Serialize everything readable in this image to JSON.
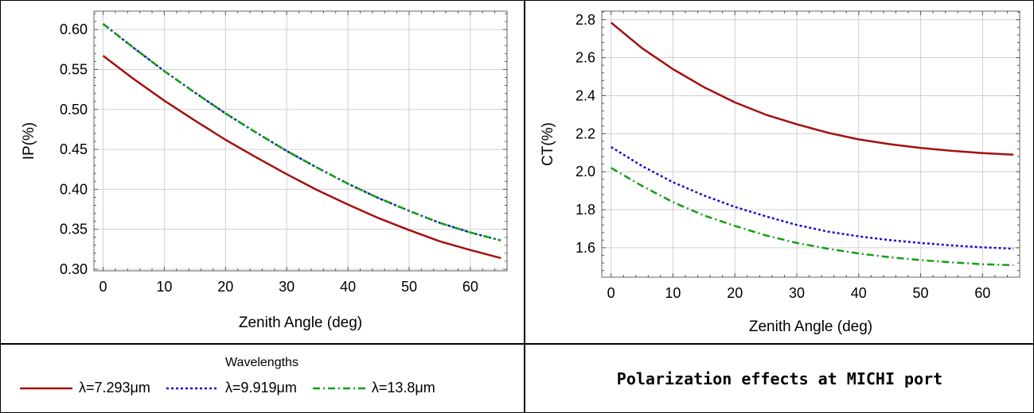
{
  "chart_data": [
    {
      "type": "line",
      "title": "",
      "xlabel": "Zenith Angle (deg)",
      "ylabel": "IP(%)",
      "xlim": [
        -1.5,
        66
      ],
      "ylim": [
        0.298,
        0.623
      ],
      "xticks": [
        0,
        10,
        20,
        30,
        40,
        50,
        60
      ],
      "yticks": [
        0.3,
        0.35,
        0.4,
        0.45,
        0.5,
        0.55,
        0.6
      ],
      "ytick_labels": [
        "0.30",
        "0.35",
        "0.40",
        "0.45",
        "0.50",
        "0.55",
        "0.60"
      ],
      "grid": true,
      "x": [
        0,
        5,
        10,
        15,
        20,
        25,
        30,
        35,
        40,
        45,
        50,
        55,
        60,
        65
      ],
      "series": [
        {
          "name": "λ=7.293μm",
          "color": "#a50f0f",
          "dash": "solid",
          "values": [
            0.567,
            0.538,
            0.511,
            0.486,
            0.462,
            0.44,
            0.419,
            0.399,
            0.381,
            0.364,
            0.349,
            0.335,
            0.324,
            0.314
          ]
        },
        {
          "name": "λ=9.919μm",
          "color": "#1010d0",
          "dash": "dotted",
          "values": [
            0.607,
            0.577,
            0.548,
            0.521,
            0.495,
            0.471,
            0.448,
            0.427,
            0.407,
            0.389,
            0.373,
            0.358,
            0.346,
            0.336
          ]
        },
        {
          "name": "λ=13.8μm",
          "color": "#10a010",
          "dash": "dashdot",
          "values": [
            0.607,
            0.577,
            0.548,
            0.521,
            0.495,
            0.471,
            0.448,
            0.427,
            0.407,
            0.389,
            0.373,
            0.358,
            0.346,
            0.336
          ]
        }
      ]
    },
    {
      "type": "line",
      "title": "",
      "xlabel": "Zenith Angle (deg)",
      "ylabel": "CT(%)",
      "xlim": [
        -1.5,
        66
      ],
      "ylim": [
        1.445,
        2.845
      ],
      "xticks": [
        0,
        10,
        20,
        30,
        40,
        50,
        60
      ],
      "yticks": [
        1.6,
        1.8,
        2.0,
        2.2,
        2.4,
        2.6,
        2.8
      ],
      "ytick_labels": [
        "1.6",
        "1.8",
        "2.0",
        "2.2",
        "2.4",
        "2.6",
        "2.8"
      ],
      "grid": true,
      "x": [
        0,
        5,
        10,
        15,
        20,
        25,
        30,
        35,
        40,
        45,
        50,
        55,
        60,
        65
      ],
      "series": [
        {
          "name": "λ=7.293μm",
          "color": "#a50f0f",
          "dash": "solid",
          "values": [
            2.785,
            2.65,
            2.54,
            2.445,
            2.365,
            2.3,
            2.25,
            2.205,
            2.17,
            2.145,
            2.125,
            2.11,
            2.098,
            2.09
          ]
        },
        {
          "name": "λ=9.919μm",
          "color": "#1010d0",
          "dash": "dotted",
          "values": [
            2.13,
            2.03,
            1.945,
            1.875,
            1.815,
            1.765,
            1.72,
            1.685,
            1.66,
            1.64,
            1.625,
            1.612,
            1.602,
            1.595
          ]
        },
        {
          "name": "λ=13.8μm",
          "color": "#10a010",
          "dash": "dashdot",
          "values": [
            2.02,
            1.925,
            1.84,
            1.77,
            1.715,
            1.665,
            1.625,
            1.595,
            1.57,
            1.55,
            1.535,
            1.523,
            1.513,
            1.508
          ]
        }
      ]
    }
  ],
  "legend": {
    "title": "Wavelengths",
    "items": [
      {
        "label": "λ=7.293μm",
        "color": "#a50f0f",
        "dash": "solid"
      },
      {
        "label": "λ=9.919μm",
        "color": "#1010d0",
        "dash": "dotted"
      },
      {
        "label": "λ=13.8μm",
        "color": "#10a010",
        "dash": "dashdot"
      }
    ]
  },
  "caption": "Polarization effects at MICHI port"
}
